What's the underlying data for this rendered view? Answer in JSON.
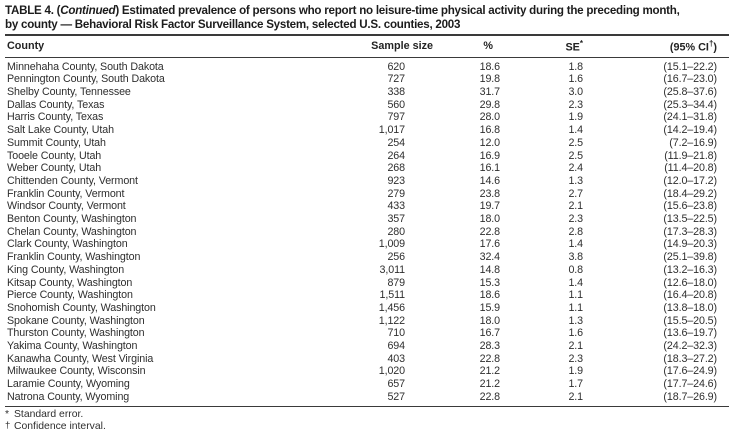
{
  "title": {
    "prefix": "TABLE 4. (",
    "continued": "Continued",
    "after_continued": ") Estimated prevalence of persons who report no leisure-time physical activity during the preceding month,",
    "line2": "by county — Behavioral Risk Factor Surveillance System, selected U.S. counties, 2003"
  },
  "table": {
    "columns": {
      "county": "County",
      "sample_size": "Sample size",
      "percent": "%",
      "se": {
        "label": "SE",
        "sup": "*"
      },
      "ci": {
        "open": "(95% CI",
        "sup": "†",
        "close": ")"
      }
    },
    "rows": [
      [
        "Minnehaha County, South Dakota",
        "620",
        "18.6",
        "1.8",
        "(15.1–22.2)"
      ],
      [
        "Pennington County, South Dakota",
        "727",
        "19.8",
        "1.6",
        "(16.7–23.0)"
      ],
      [
        "Shelby County, Tennessee",
        "338",
        "31.7",
        "3.0",
        "(25.8–37.6)"
      ],
      [
        "Dallas County, Texas",
        "560",
        "29.8",
        "2.3",
        "(25.3–34.4)"
      ],
      [
        "Harris County, Texas",
        "797",
        "28.0",
        "1.9",
        "(24.1–31.8)"
      ],
      [
        "Salt Lake County, Utah",
        "1,017",
        "16.8",
        "1.4",
        "(14.2–19.4)"
      ],
      [
        "Summit County, Utah",
        "254",
        "12.0",
        "2.5",
        "(7.2–16.9)"
      ],
      [
        "Tooele County, Utah",
        "264",
        "16.9",
        "2.5",
        "(11.9–21.8)"
      ],
      [
        "Weber County, Utah",
        "268",
        "16.1",
        "2.4",
        "(11.4–20.8)"
      ],
      [
        "Chittenden County, Vermont",
        "923",
        "14.6",
        "1.3",
        "(12.0–17.2)"
      ],
      [
        "Franklin County, Vermont",
        "279",
        "23.8",
        "2.7",
        "(18.4–29.2)"
      ],
      [
        "Windsor County, Vermont",
        "433",
        "19.7",
        "2.1",
        "(15.6–23.8)"
      ],
      [
        "Benton County, Washington",
        "357",
        "18.0",
        "2.3",
        "(13.5–22.5)"
      ],
      [
        "Chelan County, Washington",
        "280",
        "22.8",
        "2.8",
        "(17.3–28.3)"
      ],
      [
        "Clark County, Washington",
        "1,009",
        "17.6",
        "1.4",
        "(14.9–20.3)"
      ],
      [
        "Franklin County, Washington",
        "256",
        "32.4",
        "3.8",
        "(25.1–39.8)"
      ],
      [
        "King County, Washington",
        "3,011",
        "14.8",
        "0.8",
        "(13.2–16.3)"
      ],
      [
        "Kitsap County, Washington",
        "879",
        "15.3",
        "1.4",
        "(12.6–18.0)"
      ],
      [
        "Pierce County, Washington",
        "1,511",
        "18.6",
        "1.1",
        "(16.4–20.8)"
      ],
      [
        "Snohomish County, Washington",
        "1,456",
        "15.9",
        "1.1",
        "(13.8–18.0)"
      ],
      [
        "Spokane County, Washington",
        "1,122",
        "18.0",
        "1.3",
        "(15.5–20.5)"
      ],
      [
        "Thurston County, Washington",
        "710",
        "16.7",
        "1.6",
        "(13.6–19.7)"
      ],
      [
        "Yakima County, Washington",
        "694",
        "28.3",
        "2.1",
        "(24.2–32.3)"
      ],
      [
        "Kanawha County, West Virginia",
        "403",
        "22.8",
        "2.3",
        "(18.3–27.2)"
      ],
      [
        "Milwaukee County, Wisconsin",
        "1,020",
        "21.2",
        "1.9",
        "(17.6–24.9)"
      ],
      [
        "Laramie County, Wyoming",
        "657",
        "21.2",
        "1.7",
        "(17.7–24.6)"
      ],
      [
        "Natrona County, Wyoming",
        "527",
        "22.8",
        "2.1",
        "(18.7–26.9)"
      ]
    ]
  },
  "footnotes": [
    {
      "symbol": "*",
      "text": "Standard error."
    },
    {
      "symbol": "†",
      "text": "Confidence interval."
    }
  ]
}
